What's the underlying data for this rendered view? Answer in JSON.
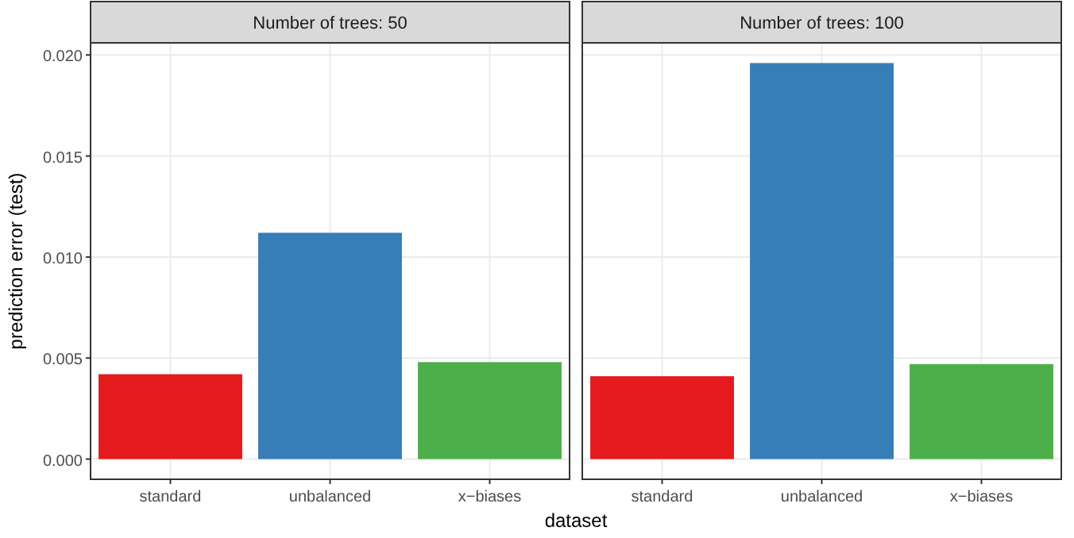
{
  "chart_data": [
    {
      "type": "bar",
      "title": "Number of trees: 50",
      "xlabel": "dataset",
      "ylabel": "prediction error (test)",
      "categories": [
        "standard",
        "unbalanced",
        "x−biases"
      ],
      "values": [
        0.0042,
        0.0112,
        0.0048
      ],
      "colors": [
        "#e41a1c",
        "#377eb8",
        "#4daf4a"
      ],
      "ylim": [
        -0.001,
        0.0206
      ],
      "yticks": [
        {
          "value": 0,
          "label": "0.000"
        },
        {
          "value": 0.005,
          "label": "0.005"
        },
        {
          "value": 0.01,
          "label": "0.010"
        },
        {
          "value": 0.015,
          "label": "0.015"
        },
        {
          "value": 0.02,
          "label": "0.020"
        }
      ],
      "grid": true
    },
    {
      "type": "bar",
      "title": "Number of trees: 100",
      "categories": [
        "standard",
        "unbalanced",
        "x−biases"
      ],
      "values": [
        0.0041,
        0.0196,
        0.0047
      ],
      "colors": [
        "#e41a1c",
        "#377eb8",
        "#4daf4a"
      ],
      "ylim": [
        -0.001,
        0.0206
      ],
      "yticks": [
        {
          "value": 0,
          "label": null
        },
        {
          "value": 0.005,
          "label": null
        },
        {
          "value": 0.01,
          "label": null
        },
        {
          "value": 0.015,
          "label": null
        },
        {
          "value": 0.02,
          "label": null
        }
      ],
      "grid": true,
      "tick_labels": "x"
    }
  ]
}
